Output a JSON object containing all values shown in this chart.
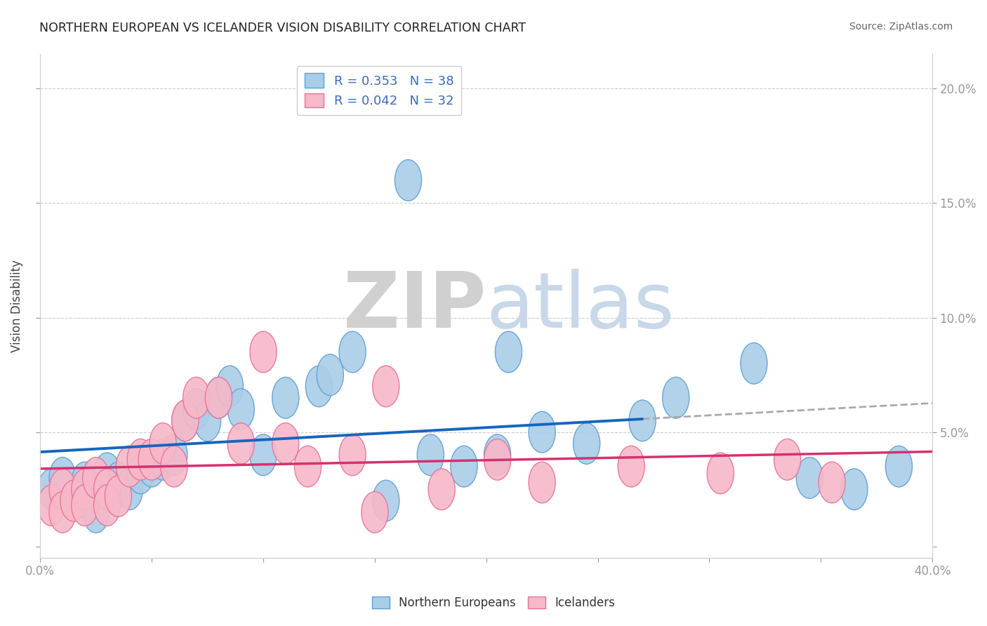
{
  "title": "NORTHERN EUROPEAN VS ICELANDER VISION DISABILITY CORRELATION CHART",
  "source": "Source: ZipAtlas.com",
  "ylabel": "Vision Disability",
  "xlim": [
    0.0,
    0.4
  ],
  "ylim": [
    -0.005,
    0.215
  ],
  "ytick_positions": [
    0.0,
    0.05,
    0.1,
    0.15,
    0.2
  ],
  "ytick_labels": [
    "",
    "5.0%",
    "10.0%",
    "15.0%",
    "20.0%"
  ],
  "xtick_positions": [
    0.0,
    0.05,
    0.1,
    0.15,
    0.2,
    0.25,
    0.3,
    0.35,
    0.4
  ],
  "xtick_labels": [
    "0.0%",
    "",
    "",
    "",
    "",
    "",
    "",
    "",
    "40.0%"
  ],
  "blue_R": 0.353,
  "blue_N": 38,
  "pink_R": 0.042,
  "pink_N": 32,
  "blue_face": "#aacde8",
  "blue_edge": "#5b9fd4",
  "pink_face": "#f7b8c8",
  "pink_edge": "#e87096",
  "trend_blue": "#1565c0",
  "trend_pink": "#d63070",
  "trend_gray": "#aaaaaa",
  "background_color": "#ffffff",
  "grid_color": "#cccccc",
  "blue_points_x": [
    0.005,
    0.01,
    0.015,
    0.02,
    0.025,
    0.03,
    0.03,
    0.035,
    0.04,
    0.045,
    0.05,
    0.055,
    0.06,
    0.065,
    0.07,
    0.075,
    0.08,
    0.085,
    0.09,
    0.1,
    0.11,
    0.125,
    0.14,
    0.155,
    0.175,
    0.19,
    0.205,
    0.21,
    0.225,
    0.245,
    0.27,
    0.285,
    0.32,
    0.345,
    0.365,
    0.385,
    0.165,
    0.13
  ],
  "blue_points_y": [
    0.025,
    0.03,
    0.02,
    0.028,
    0.015,
    0.025,
    0.032,
    0.028,
    0.025,
    0.032,
    0.035,
    0.038,
    0.04,
    0.055,
    0.06,
    0.055,
    0.065,
    0.07,
    0.06,
    0.04,
    0.065,
    0.07,
    0.085,
    0.02,
    0.04,
    0.035,
    0.04,
    0.085,
    0.05,
    0.045,
    0.055,
    0.065,
    0.08,
    0.03,
    0.025,
    0.035,
    0.16,
    0.075
  ],
  "pink_points_x": [
    0.005,
    0.01,
    0.01,
    0.015,
    0.02,
    0.02,
    0.025,
    0.03,
    0.03,
    0.035,
    0.04,
    0.045,
    0.05,
    0.055,
    0.06,
    0.065,
    0.07,
    0.08,
    0.09,
    0.1,
    0.11,
    0.12,
    0.14,
    0.155,
    0.18,
    0.205,
    0.225,
    0.265,
    0.305,
    0.335,
    0.355,
    0.15
  ],
  "pink_points_y": [
    0.018,
    0.025,
    0.015,
    0.02,
    0.025,
    0.018,
    0.03,
    0.025,
    0.018,
    0.022,
    0.035,
    0.038,
    0.038,
    0.045,
    0.035,
    0.055,
    0.065,
    0.065,
    0.045,
    0.085,
    0.045,
    0.035,
    0.04,
    0.07,
    0.025,
    0.038,
    0.028,
    0.035,
    0.032,
    0.038,
    0.028,
    0.015
  ],
  "watermark_zip": "ZIP",
  "watermark_atlas": "atlas",
  "legend_label_blue": "R = 0.353   N = 38",
  "legend_label_pink": "R = 0.042   N = 32",
  "bottom_label_blue": "Northern Europeans",
  "bottom_label_pink": "Icelanders"
}
